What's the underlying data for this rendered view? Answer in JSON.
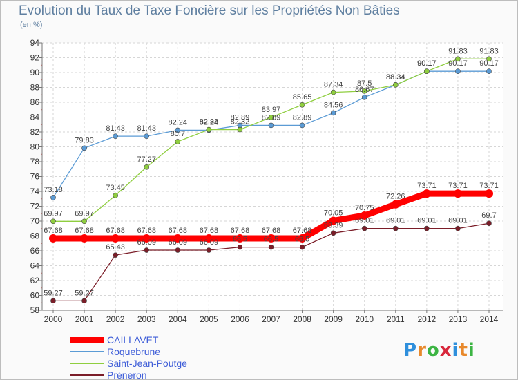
{
  "title": "Evolution du Taux de Taxe Foncière sur les Propriétés Non Bâties",
  "unit_label": "(en %)",
  "logo": {
    "text": "Proxiti",
    "colors": [
      "#2f8fdc",
      "#e8892c",
      "#3cb443",
      "#d8263a",
      "#2f8fdc",
      "#e8892c",
      "#3cb443"
    ]
  },
  "chart_data": {
    "type": "line",
    "title": "Evolution du Taux de Taxe Foncière sur les Propriétés Non Bâties",
    "ylabel": "(en %)",
    "xlabel": "",
    "x": [
      "2000",
      "2001",
      "2002",
      "2003",
      "2004",
      "2005",
      "2006",
      "2007",
      "2008",
      "2009",
      "2010",
      "2011",
      "2012",
      "2013",
      "2014"
    ],
    "ylim": [
      58,
      94
    ],
    "yticks": [
      58,
      60,
      62,
      64,
      66,
      68,
      70,
      72,
      74,
      76,
      78,
      80,
      82,
      84,
      86,
      88,
      90,
      92,
      94
    ],
    "grid": true,
    "legend_position": "bottom-left",
    "series": [
      {
        "name": "CAILLAVET",
        "color": "#ff0000",
        "emphasis": true,
        "values": [
          67.68,
          67.68,
          67.68,
          67.68,
          67.68,
          67.68,
          67.68,
          67.68,
          67.68,
          70.05,
          70.75,
          72.26,
          73.71,
          73.71,
          73.71
        ],
        "labels": [
          "67.68",
          "67.68",
          "67.68",
          "67.68",
          "67.68",
          "67.68",
          "67.68",
          "67.68",
          "67.68",
          "70.05",
          "70.75",
          "72.26",
          "73.71",
          "73.71",
          "73.71"
        ]
      },
      {
        "name": "Roquebrune",
        "color": "#5b9bd5",
        "values": [
          73.18,
          79.83,
          81.43,
          81.43,
          82.24,
          82.24,
          82.89,
          82.89,
          82.89,
          84.56,
          86.67,
          88.34,
          90.17,
          90.17,
          90.17
        ],
        "labels": [
          "73.18",
          "79.83",
          "81.43",
          "81.43",
          "82.24",
          "82.24",
          "82.89",
          "82.89",
          "82.89",
          "84.56",
          "86.67",
          "88.34",
          "90.17",
          "90.17",
          "90.17"
        ]
      },
      {
        "name": "Saint-Jean-Poutge",
        "color": "#8fce3f",
        "values": [
          69.97,
          69.97,
          73.45,
          77.27,
          80.7,
          82.32,
          82.32,
          83.97,
          85.65,
          87.34,
          87.5,
          88.34,
          90.17,
          91.83,
          91.83
        ],
        "labels": [
          "69.97",
          "69.97",
          "73.45",
          "77.27",
          "80.7",
          "82.32",
          "82.32",
          "83.97",
          "85.65",
          "87.34",
          "87.5",
          "88.34",
          "90.17",
          "91.83",
          "91.83"
        ]
      },
      {
        "name": "Préneron",
        "color": "#7b1d28",
        "values": [
          59.27,
          59.27,
          65.43,
          66.09,
          66.09,
          66.09,
          66.5,
          66.5,
          66.5,
          68.39,
          69.01,
          69.01,
          69.01,
          69.01,
          69.7
        ],
        "labels": [
          "59.27",
          "59.27",
          "65.43",
          "66.09",
          "66.09",
          "66.09",
          "66.5",
          "66.5",
          "66.5",
          "68.39",
          "69.01",
          "69.01",
          "69.01",
          "69.01",
          "69.7"
        ]
      }
    ]
  }
}
